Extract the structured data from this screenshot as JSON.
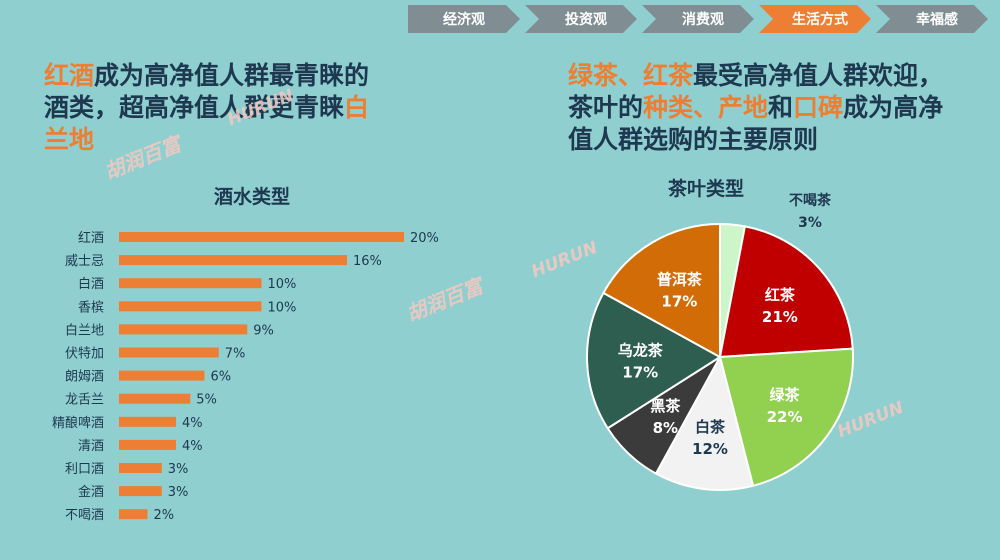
{
  "nav": {
    "items": [
      "经济观",
      "投资观",
      "消费观",
      "生活方式",
      "幸福感"
    ],
    "active_index": 3,
    "active_color": "#ec7f33",
    "inactive_color": "#808e93"
  },
  "left": {
    "headline_parts": [
      {
        "text": "红酒",
        "hl": true
      },
      {
        "text": "成为高净值人群最青睐的",
        "hl": false
      },
      {
        "text": "\n",
        "hl": false
      },
      {
        "text": "酒类，超高净值人群更青睐",
        "hl": false
      },
      {
        "text": "白",
        "hl": true
      },
      {
        "text": "\n",
        "hl": false
      },
      {
        "text": "兰地",
        "hl": true
      }
    ],
    "chart_title": "酒水类型"
  },
  "right": {
    "headline_parts": [
      {
        "text": "绿茶、红茶",
        "hl": true
      },
      {
        "text": "最受高净值人群欢迎，",
        "hl": false
      },
      {
        "text": "\n",
        "hl": false
      },
      {
        "text": "茶叶的",
        "hl": false
      },
      {
        "text": "种类、产地",
        "hl": true
      },
      {
        "text": "和",
        "hl": false
      },
      {
        "text": "口碑",
        "hl": true
      },
      {
        "text": "成为高净",
        "hl": false
      },
      {
        "text": "\n",
        "hl": false
      },
      {
        "text": "值人群选购的主要原则",
        "hl": false
      }
    ],
    "chart_title": "茶叶类型"
  },
  "watermarks": {
    "cn": "胡润百富",
    "en": "HURUN"
  },
  "chart_data": [
    {
      "type": "bar",
      "orientation": "horizontal",
      "title": "酒水类型",
      "categories": [
        "红酒",
        "威士忌",
        "白酒",
        "香槟",
        "白兰地",
        "伏特加",
        "朗姆酒",
        "龙舌兰",
        "精酿啤酒",
        "清酒",
        "利口酒",
        "金酒",
        "不喝酒"
      ],
      "values": [
        20,
        16,
        10,
        10,
        9,
        7,
        6,
        5,
        4,
        4,
        3,
        3,
        2
      ],
      "value_labels": [
        "20%",
        "16%",
        "10%",
        "10%",
        "9%",
        "7%",
        "6%",
        "5%",
        "4%",
        "4%",
        "3%",
        "3%",
        "2%"
      ],
      "unit": "%",
      "bar_color": "#ec7f33",
      "xlim": [
        0,
        20
      ]
    },
    {
      "type": "pie",
      "title": "茶叶类型",
      "slices": [
        {
          "label": "不喝茶",
          "value": 3,
          "pct_label": "3%",
          "color": "#ccf6c8",
          "text_color": "#1e3850",
          "outside": true
        },
        {
          "label": "红茶",
          "value": 21,
          "pct_label": "21%",
          "color": "#c00000",
          "text_color": "#ffffff"
        },
        {
          "label": "绿茶",
          "value": 22,
          "pct_label": "22%",
          "color": "#92d050",
          "text_color": "#ffffff"
        },
        {
          "label": "白茶",
          "value": 12,
          "pct_label": "12%",
          "color": "#f2f2f2",
          "text_color": "#1e3850"
        },
        {
          "label": "黑茶",
          "value": 8,
          "pct_label": "8%",
          "color": "#3b3b3b",
          "text_color": "#ffffff"
        },
        {
          "label": "乌龙茶",
          "value": 17,
          "pct_label": "17%",
          "color": "#2e5e50",
          "text_color": "#ffffff"
        },
        {
          "label": "普洱茶",
          "value": 17,
          "pct_label": "17%",
          "color": "#d26c06",
          "text_color": "#ffffff"
        }
      ],
      "start_angle_deg": 0,
      "direction": "clockwise"
    }
  ]
}
